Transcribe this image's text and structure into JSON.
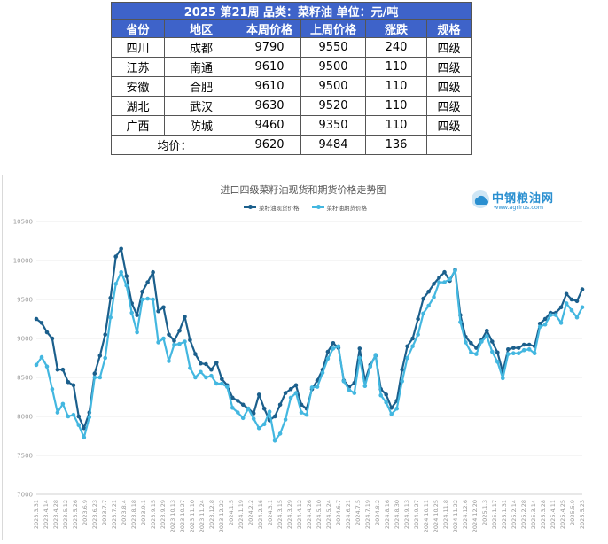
{
  "table": {
    "title": "2025 第21周    品类：菜籽油    单位：元/吨",
    "headers": [
      "省份",
      "地区",
      "本周价格",
      "上周价格",
      "涨跌",
      "规格"
    ],
    "rows": [
      [
        "四川",
        "成都",
        "9790",
        "9550",
        "240",
        "四级"
      ],
      [
        "江苏",
        "南通",
        "9610",
        "9500",
        "110",
        "四级"
      ],
      [
        "安徽",
        "合肥",
        "9610",
        "9500",
        "110",
        "四级"
      ],
      [
        "湖北",
        "武汉",
        "9630",
        "9520",
        "110",
        "四级"
      ],
      [
        "广西",
        "防城",
        "9460",
        "9350",
        "110",
        "四级"
      ]
    ],
    "average": {
      "label": "均价：",
      "this_week": "9620",
      "last_week": "9484",
      "change": "136",
      "spec": ""
    }
  },
  "watermark": {
    "name": "中钢粮油网",
    "url": "www.agrirus.com"
  },
  "colors": {
    "spot": "#1b5f8c",
    "futures": "#43b7e0",
    "grid": "#ebebeb"
  },
  "chart_data": {
    "type": "line",
    "title": "进口四级菜籽油现货和期货价格走势图",
    "xlabel": "",
    "ylabel": "",
    "ylim": [
      7000,
      10500
    ],
    "yticks": [
      7000,
      7500,
      8000,
      8500,
      9000,
      9500,
      10000,
      10500
    ],
    "grid": true,
    "legend_position": "top-center",
    "x_tick_labels": [
      "2023.3.31",
      "2023.4.14",
      "2023.4.28",
      "2023.5.12",
      "2023.5.26",
      "2023.6.9",
      "2023.6.23",
      "2023.7.7",
      "2023.7.21",
      "2023.8.4",
      "2023.8.18",
      "2023.9.1",
      "2023.9.15",
      "2023.9.29",
      "2023.10.13",
      "2023.10.27",
      "2023.11.10",
      "2023.11.24",
      "2023.12.8",
      "2023.12.22",
      "2024.1.5",
      "2024.1.19",
      "2024.2.2",
      "2024.2.16",
      "2024.3.1",
      "2024.3.15",
      "2024.3.29",
      "2024.4.12",
      "2024.4.26",
      "2024.5.10",
      "2024.5.24",
      "2024.6.7",
      "2024.6.21",
      "2024.7.5",
      "2024.7.19",
      "2024.8.2",
      "2024.8.16",
      "2024.8.30",
      "2024.9.13",
      "2024.9.27",
      "2024.10.11",
      "2024.10.25",
      "2024.11.8",
      "2024.11.22",
      "2024.12.6",
      "2024.12.20",
      "2025.1.3",
      "2025.1.17",
      "2025.1.31",
      "2025.2.14",
      "2025.2.28",
      "2025.3.14",
      "2025.3.28",
      "2025.4.11",
      "2025.4.25",
      "2025.5.9",
      "2025.5.23"
    ],
    "series": [
      {
        "name": "菜籽油现货价格",
        "values": [
          9250,
          9200,
          9080,
          9000,
          8600,
          8600,
          8440,
          8400,
          8000,
          7850,
          8050,
          8550,
          8780,
          9050,
          9520,
          10050,
          10150,
          9800,
          9450,
          9300,
          9600,
          9720,
          9850,
          9350,
          9400,
          9050,
          8970,
          9100,
          9280,
          8980,
          8800,
          8680,
          8670,
          8600,
          8690,
          8480,
          8400,
          8240,
          8200,
          8150,
          8100,
          8040,
          8280,
          8100,
          7950,
          8000,
          8150,
          8300,
          8350,
          8400,
          8150,
          8100,
          8350,
          8460,
          8600,
          8830,
          8940,
          8880,
          8460,
          8380,
          8430,
          8870,
          8460,
          8660,
          8780,
          8350,
          8280,
          8110,
          8200,
          8600,
          8900,
          9000,
          9250,
          9510,
          9600,
          9700,
          9780,
          9850,
          9740,
          9880,
          9300,
          9020,
          8940,
          8880,
          8980,
          9100,
          8960,
          8820,
          8570,
          8860,
          8880,
          8880,
          8920,
          8920,
          8900,
          9190,
          9250,
          9330,
          9330,
          9400,
          9570,
          9500,
          9480,
          9630
        ]
      },
      {
        "name": "菜籽油期货价格",
        "values": [
          8660,
          8760,
          8640,
          8350,
          8050,
          8160,
          8000,
          8020,
          7890,
          7730,
          7990,
          8500,
          8500,
          8750,
          9270,
          9700,
          9850,
          9680,
          9330,
          9080,
          9500,
          9510,
          9500,
          8950,
          9000,
          8710,
          8920,
          8930,
          8960,
          8620,
          8500,
          8570,
          8500,
          8520,
          8420,
          8420,
          8380,
          8110,
          8050,
          7980,
          8100,
          7970,
          7850,
          7900,
          8060,
          7690,
          7780,
          7960,
          8240,
          8300,
          8050,
          8020,
          8370,
          8380,
          8560,
          8740,
          8870,
          8900,
          8450,
          8340,
          8300,
          8750,
          8390,
          8640,
          8790,
          8270,
          8180,
          8030,
          8100,
          8450,
          8750,
          8900,
          9050,
          9320,
          9420,
          9530,
          9720,
          9720,
          9760,
          9870,
          9210,
          8950,
          8820,
          8800,
          8960,
          9030,
          8830,
          8700,
          8490,
          8800,
          8810,
          8810,
          8850,
          8860,
          8810,
          9150,
          9180,
          9300,
          9300,
          9200,
          9450,
          9360,
          9270,
          9400
        ]
      }
    ]
  }
}
